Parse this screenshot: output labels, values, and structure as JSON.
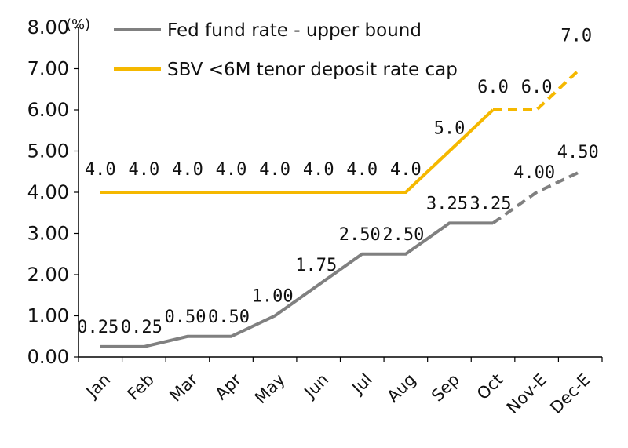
{
  "chart_data": {
    "type": "line",
    "unit_label": "(%)",
    "categories": [
      "Jan",
      "Feb",
      "Mar",
      "Apr",
      "May",
      "Jun",
      "Jul",
      "Aug",
      "Sep",
      "Oct",
      "Nov-E",
      "Dec-E"
    ],
    "ylim": [
      0,
      8
    ],
    "yticks": [
      "0.00",
      "1.00",
      "2.00",
      "3.00",
      "4.00",
      "5.00",
      "6.00",
      "7.00",
      "8.00"
    ],
    "legend_position": "top-center",
    "grid": false,
    "estimated_from_index": 9,
    "series": [
      {
        "name": "Fed fund rate - upper bound",
        "color": "#808080",
        "values": [
          0.25,
          0.25,
          0.5,
          0.5,
          1.0,
          1.75,
          2.5,
          2.5,
          3.25,
          3.25,
          4.0,
          4.5
        ],
        "labels": [
          "0.25",
          "0.25",
          "0.50",
          "0.50",
          "1.00",
          "1.75",
          "2.50",
          "2.50",
          "3.25",
          "3.25",
          "4.00",
          "4.50"
        ]
      },
      {
        "name": "SBV <6M tenor deposit rate cap",
        "color": "#F5B800",
        "values": [
          4.0,
          4.0,
          4.0,
          4.0,
          4.0,
          4.0,
          4.0,
          4.0,
          5.0,
          6.0,
          6.0,
          7.0
        ],
        "labels": [
          "4.0",
          "4.0",
          "4.0",
          "4.0",
          "4.0",
          "4.0",
          "4.0",
          "4.0",
          "5.0",
          "6.0",
          "6.0",
          "7.0"
        ]
      }
    ]
  }
}
